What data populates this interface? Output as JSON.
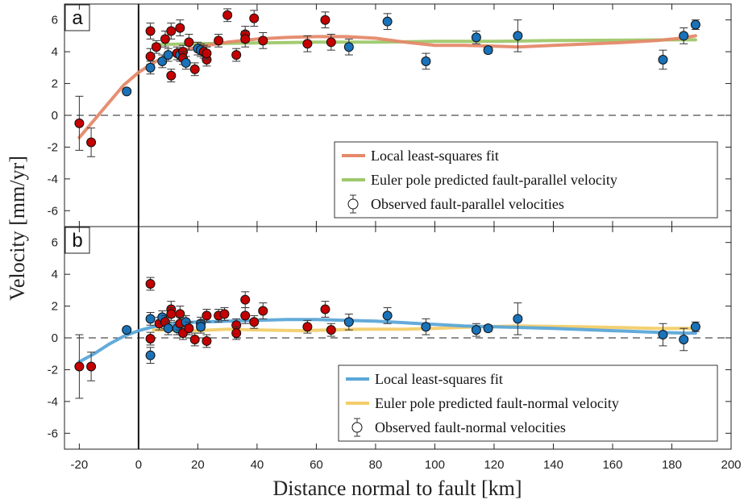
{
  "chart_data": [
    {
      "type": "scatter",
      "panel_label": "a",
      "xlim": [
        -25,
        200
      ],
      "ylim": [
        -7,
        7
      ],
      "yticks": [
        -6,
        -4,
        -2,
        0,
        2,
        4,
        6
      ],
      "fault_x": 0,
      "zero_line": true,
      "legend_position": "lower-right",
      "lines": [
        {
          "name": "Local least-squares fit",
          "color": "#e5896a",
          "x": [
            -20,
            -15,
            -10,
            -5,
            0,
            5,
            10,
            15,
            20,
            30,
            40,
            50,
            60,
            70,
            80,
            90,
            100,
            110,
            120,
            128,
            140,
            160,
            175,
            183,
            188
          ],
          "y": [
            -1.4,
            -0.3,
            0.8,
            1.9,
            2.7,
            3.3,
            3.8,
            4.1,
            4.3,
            4.6,
            4.8,
            4.9,
            4.95,
            4.95,
            4.85,
            4.6,
            4.4,
            4.4,
            4.35,
            4.3,
            4.4,
            4.55,
            4.7,
            4.85,
            5.0
          ]
        },
        {
          "name": "Euler pole predicted fault-parallel velocity",
          "color": "#9ec86a",
          "x": [
            5,
            20,
            40,
            60,
            80,
            100,
            120,
            140,
            160,
            180,
            188
          ],
          "y": [
            4.45,
            4.5,
            4.55,
            4.6,
            4.6,
            4.65,
            4.65,
            4.7,
            4.72,
            4.75,
            4.75
          ]
        }
      ],
      "marker_series_name": "Observed fault-parallel velocities",
      "points": [
        {
          "x": -20,
          "y": -0.5,
          "err": 1.7,
          "c": "red"
        },
        {
          "x": -16,
          "y": -1.7,
          "err": 0.9,
          "c": "red"
        },
        {
          "x": -4,
          "y": 1.5,
          "err": 0.1,
          "c": "blue"
        },
        {
          "x": 4,
          "y": 5.3,
          "err": 0.5,
          "c": "red"
        },
        {
          "x": 4,
          "y": 3.7,
          "err": 0.5,
          "c": "red"
        },
        {
          "x": 4,
          "y": 3.0,
          "err": 0.4,
          "c": "blue"
        },
        {
          "x": 6,
          "y": 4.3,
          "err": 0.4,
          "c": "red"
        },
        {
          "x": 8,
          "y": 3.4,
          "err": 0.4,
          "c": "blue"
        },
        {
          "x": 9,
          "y": 4.8,
          "err": 0.5,
          "c": "red"
        },
        {
          "x": 10,
          "y": 3.8,
          "err": 0.4,
          "c": "blue"
        },
        {
          "x": 11,
          "y": 5.3,
          "err": 0.5,
          "c": "red"
        },
        {
          "x": 11,
          "y": 2.5,
          "err": 0.4,
          "c": "red"
        },
        {
          "x": 13,
          "y": 3.9,
          "err": 0.4,
          "c": "red"
        },
        {
          "x": 14,
          "y": 5.5,
          "err": 0.5,
          "c": "red"
        },
        {
          "x": 14,
          "y": 3.8,
          "err": 0.4,
          "c": "blue"
        },
        {
          "x": 15,
          "y": 4.0,
          "err": 0.4,
          "c": "red"
        },
        {
          "x": 15,
          "y": 3.6,
          "err": 0.4,
          "c": "red"
        },
        {
          "x": 16,
          "y": 3.3,
          "err": 0.4,
          "c": "blue"
        },
        {
          "x": 17,
          "y": 4.6,
          "err": 0.5,
          "c": "red"
        },
        {
          "x": 19,
          "y": 2.9,
          "err": 0.4,
          "c": "red"
        },
        {
          "x": 20,
          "y": 4.2,
          "err": 0.4,
          "c": "blue"
        },
        {
          "x": 21,
          "y": 4.1,
          "err": 0.4,
          "c": "blue"
        },
        {
          "x": 22,
          "y": 4.0,
          "err": 0.4,
          "c": "red"
        },
        {
          "x": 23,
          "y": 3.5,
          "err": 0.4,
          "c": "red"
        },
        {
          "x": 23,
          "y": 3.9,
          "err": 0.4,
          "c": "red"
        },
        {
          "x": 27,
          "y": 4.7,
          "err": 0.4,
          "c": "red"
        },
        {
          "x": 30,
          "y": 6.3,
          "err": 0.4,
          "c": "red"
        },
        {
          "x": 33,
          "y": 3.8,
          "err": 0.4,
          "c": "red"
        },
        {
          "x": 36,
          "y": 5.1,
          "err": 0.5,
          "c": "red"
        },
        {
          "x": 36,
          "y": 4.8,
          "err": 0.5,
          "c": "red"
        },
        {
          "x": 39,
          "y": 6.1,
          "err": 0.5,
          "c": "red"
        },
        {
          "x": 42,
          "y": 4.7,
          "err": 0.5,
          "c": "red"
        },
        {
          "x": 57,
          "y": 4.5,
          "err": 0.5,
          "c": "red"
        },
        {
          "x": 63,
          "y": 6.0,
          "err": 0.5,
          "c": "red"
        },
        {
          "x": 65,
          "y": 4.6,
          "err": 0.5,
          "c": "red"
        },
        {
          "x": 71,
          "y": 4.3,
          "err": 0.5,
          "c": "blue"
        },
        {
          "x": 84,
          "y": 5.9,
          "err": 0.5,
          "c": "blue"
        },
        {
          "x": 97,
          "y": 3.4,
          "err": 0.5,
          "c": "blue"
        },
        {
          "x": 114,
          "y": 4.9,
          "err": 0.4,
          "c": "blue"
        },
        {
          "x": 118,
          "y": 4.1,
          "err": 0.2,
          "c": "blue"
        },
        {
          "x": 128,
          "y": 5.0,
          "err": 1.0,
          "c": "blue"
        },
        {
          "x": 177,
          "y": 3.5,
          "err": 0.6,
          "c": "blue"
        },
        {
          "x": 184,
          "y": 5.0,
          "err": 0.5,
          "c": "blue"
        },
        {
          "x": 188,
          "y": 5.7,
          "err": 0.3,
          "c": "blue"
        }
      ]
    },
    {
      "type": "scatter",
      "panel_label": "b",
      "xlim": [
        -25,
        200
      ],
      "ylim": [
        -7,
        7
      ],
      "yticks": [
        -6,
        -4,
        -2,
        0,
        2,
        4,
        6
      ],
      "fault_x": 0,
      "zero_line": true,
      "legend_position": "lower-right",
      "lines": [
        {
          "name": "Local least-squares fit",
          "color": "#5ba7d8",
          "x": [
            -20,
            -15,
            -10,
            -5,
            0,
            5,
            10,
            15,
            20,
            30,
            40,
            50,
            60,
            70,
            80,
            90,
            100,
            110,
            120,
            130,
            140,
            160,
            175,
            185,
            188
          ],
          "y": [
            -1.5,
            -1.0,
            -0.4,
            0.1,
            0.45,
            0.7,
            0.85,
            0.95,
            1.0,
            1.05,
            1.1,
            1.15,
            1.15,
            1.1,
            1.05,
            0.95,
            0.85,
            0.75,
            0.7,
            0.65,
            0.6,
            0.45,
            0.35,
            0.3,
            0.3
          ]
        },
        {
          "name": "Euler pole predicted fault-normal velocity",
          "color": "#f2cd6a",
          "x": [
            5,
            20,
            30,
            40,
            55,
            65,
            75,
            90,
            100,
            115,
            128,
            150,
            175,
            188
          ],
          "y": [
            0.5,
            0.45,
            0.55,
            0.5,
            0.45,
            0.5,
            0.55,
            0.55,
            0.6,
            0.7,
            0.75,
            0.7,
            0.6,
            0.6
          ]
        }
      ],
      "marker_series_name": "Observed fault-normal velocities",
      "points": [
        {
          "x": -20,
          "y": -1.8,
          "err": 2.0,
          "c": "red"
        },
        {
          "x": -16,
          "y": -1.8,
          "err": 0.9,
          "c": "red"
        },
        {
          "x": -4,
          "y": 0.5,
          "err": 0.1,
          "c": "blue"
        },
        {
          "x": 4,
          "y": 3.4,
          "err": 0.4,
          "c": "red"
        },
        {
          "x": 4,
          "y": -0.05,
          "err": 0.4,
          "c": "red"
        },
        {
          "x": 4,
          "y": 1.2,
          "err": 0.4,
          "c": "blue"
        },
        {
          "x": 4,
          "y": -1.1,
          "err": 0.5,
          "c": "blue"
        },
        {
          "x": 7,
          "y": 0.9,
          "err": 0.4,
          "c": "red"
        },
        {
          "x": 8,
          "y": 1.3,
          "err": 0.4,
          "c": "blue"
        },
        {
          "x": 9,
          "y": 1.0,
          "err": 0.4,
          "c": "red"
        },
        {
          "x": 10,
          "y": 0.6,
          "err": 0.4,
          "c": "blue"
        },
        {
          "x": 11,
          "y": 1.8,
          "err": 0.5,
          "c": "red"
        },
        {
          "x": 11,
          "y": 1.5,
          "err": 0.4,
          "c": "red"
        },
        {
          "x": 13,
          "y": 0.6,
          "err": 0.4,
          "c": "blue"
        },
        {
          "x": 14,
          "y": 1.5,
          "err": 0.5,
          "c": "red"
        },
        {
          "x": 14,
          "y": 0.9,
          "err": 0.4,
          "c": "red"
        },
        {
          "x": 15,
          "y": 0.3,
          "err": 0.4,
          "c": "red"
        },
        {
          "x": 16,
          "y": 1.0,
          "err": 0.4,
          "c": "blue"
        },
        {
          "x": 17,
          "y": 0.6,
          "err": 0.4,
          "c": "red"
        },
        {
          "x": 19,
          "y": -0.1,
          "err": 0.4,
          "c": "red"
        },
        {
          "x": 21,
          "y": 0.9,
          "err": 0.4,
          "c": "blue"
        },
        {
          "x": 21,
          "y": 0.7,
          "err": 0.4,
          "c": "blue"
        },
        {
          "x": 23,
          "y": 1.4,
          "err": 0.4,
          "c": "red"
        },
        {
          "x": 23,
          "y": -0.2,
          "err": 0.4,
          "c": "red"
        },
        {
          "x": 27,
          "y": 1.4,
          "err": 0.4,
          "c": "red"
        },
        {
          "x": 29,
          "y": 1.5,
          "err": 0.4,
          "c": "red"
        },
        {
          "x": 33,
          "y": 0.8,
          "err": 0.4,
          "c": "red"
        },
        {
          "x": 33,
          "y": 0.3,
          "err": 0.4,
          "c": "red"
        },
        {
          "x": 36,
          "y": 2.4,
          "err": 0.5,
          "c": "red"
        },
        {
          "x": 36,
          "y": 1.4,
          "err": 0.5,
          "c": "red"
        },
        {
          "x": 39,
          "y": 1.0,
          "err": 0.4,
          "c": "red"
        },
        {
          "x": 42,
          "y": 1.7,
          "err": 0.5,
          "c": "red"
        },
        {
          "x": 57,
          "y": 0.7,
          "err": 0.4,
          "c": "red"
        },
        {
          "x": 63,
          "y": 1.8,
          "err": 0.5,
          "c": "red"
        },
        {
          "x": 65,
          "y": 0.5,
          "err": 0.4,
          "c": "red"
        },
        {
          "x": 71,
          "y": 1.0,
          "err": 0.5,
          "c": "blue"
        },
        {
          "x": 84,
          "y": 1.4,
          "err": 0.5,
          "c": "blue"
        },
        {
          "x": 97,
          "y": 0.7,
          "err": 0.5,
          "c": "blue"
        },
        {
          "x": 114,
          "y": 0.5,
          "err": 0.4,
          "c": "blue"
        },
        {
          "x": 118,
          "y": 0.6,
          "err": 0.2,
          "c": "blue"
        },
        {
          "x": 128,
          "y": 1.2,
          "err": 1.0,
          "c": "blue"
        },
        {
          "x": 177,
          "y": 0.2,
          "err": 0.7,
          "c": "blue"
        },
        {
          "x": 184,
          "y": -0.1,
          "err": 0.7,
          "c": "blue"
        },
        {
          "x": 188,
          "y": 0.7,
          "err": 0.3,
          "c": "blue"
        }
      ]
    }
  ],
  "axes": {
    "xticks": [
      -20,
      0,
      20,
      40,
      60,
      80,
      100,
      120,
      140,
      160,
      180,
      200
    ],
    "xlabel": "Distance normal to fault [km]",
    "ylabel": "Velocity [mm/yr]"
  },
  "colors": {
    "red_marker": "#c40000",
    "blue_marker": "#1a72b8",
    "marker_edge": "#111111",
    "axis": "#222222"
  }
}
